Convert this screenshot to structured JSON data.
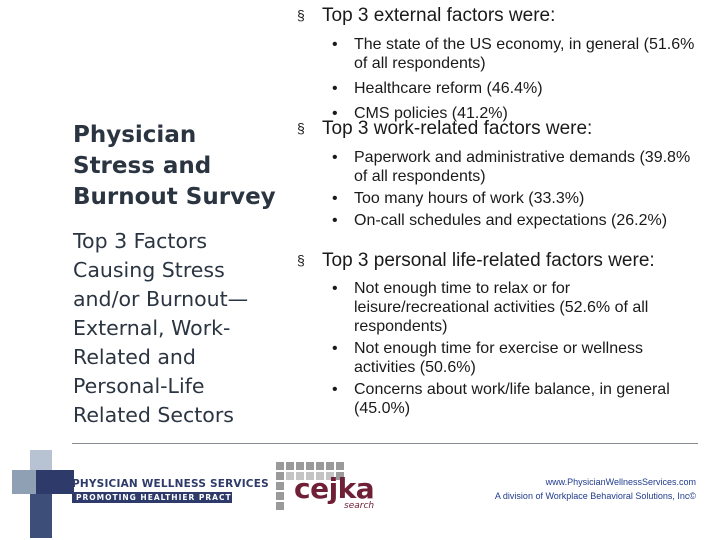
{
  "slide": {
    "title": "Physician Stress and Burnout Survey",
    "subtitle": "Top 3 Factors Causing Stress and/or Burnout—External, Work-Related and Personal-Life Related Sectors"
  },
  "sections": [
    {
      "heading": "Top 3 external factors were:",
      "items": [
        "The state of the US economy, in general (51.6% of all respondents)",
        "Healthcare reform (46.4%)",
        "CMS policies (41.2%)"
      ]
    },
    {
      "heading": "Top 3 work-related factors were:",
      "items": [
        "Paperwork and administrative demands (39.8% of all respondents)",
        "Too many hours of work (33.3%)",
        "On-call schedules and expectations (26.2%)"
      ]
    },
    {
      "heading": "Top 3 personal life-related factors were:",
      "items": [
        "Not enough time to relax or for leisure/recreational activities (52.6% of all respondents)",
        "Not enough time for exercise or wellness activities (50.6%)",
        "Concerns about work/life balance, in general (45.0%)"
      ]
    }
  ],
  "bullets": {
    "square": "§",
    "dot": "•"
  },
  "footer": {
    "pws_name": "PHYSICIAN WELLNESS SERVICES",
    "pws_tagline": "PROMOTING HEALTHIER PRACTICES",
    "cejka_word": "cejka",
    "cejka_sub": "search",
    "url": "www.PhysicianWellnessServices.com",
    "division": "A division of Workplace Behavioral Solutions, Inc©"
  },
  "colors": {
    "navy": "#2e3b6a",
    "slate": "#5d6f86",
    "maroon": "#6f2036",
    "link": "#1f3b8c"
  },
  "icons": [
    "pws-cross-logo-icon",
    "cejka-grid-logo-icon"
  ]
}
